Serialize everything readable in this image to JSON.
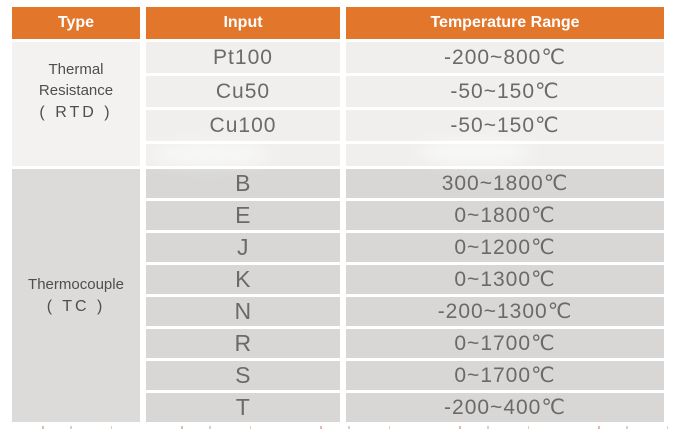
{
  "page": {
    "background": "#ffffff"
  },
  "theme": {
    "header_bg": "#e2772c",
    "header_text": "#ffffff",
    "rtd_row_bg": "#f0efee",
    "rtd_type_bg": "#f3f2f1",
    "tc_row_bg": "#d8d7d6",
    "tc_type_bg": "#dcdbda",
    "value_text": "#6b6a6a",
    "label_text": "#4f4e4e"
  },
  "table": {
    "columns": [
      "Type",
      "Input",
      "Temperature Range"
    ],
    "sections": [
      {
        "type": "Thermal Resistance",
        "type_abbr": "( RTD )",
        "rows": [
          {
            "input": "Pt100",
            "range": "-200~800℃"
          },
          {
            "input": "Cu50",
            "range": "-50~150℃"
          },
          {
            "input": "Cu100",
            "range": "-50~150℃"
          }
        ]
      },
      {
        "type": "Thermocouple",
        "type_abbr": "( TC )",
        "rows": [
          {
            "input": "B",
            "range": "300~1800℃"
          },
          {
            "input": "E",
            "range": "0~1800℃"
          },
          {
            "input": "J",
            "range": "0~1200℃"
          },
          {
            "input": "K",
            "range": "0~1300℃"
          },
          {
            "input": "N",
            "range": "-200~1300℃"
          },
          {
            "input": "R",
            "range": "0~1700℃"
          },
          {
            "input": "S",
            "range": "0~1700℃"
          },
          {
            "input": "T",
            "range": "-200~400℃"
          }
        ]
      }
    ]
  },
  "chart_data": {
    "type": "table",
    "title": "",
    "columns": [
      "Type",
      "Input",
      "Temperature Range"
    ],
    "rows": [
      [
        "Thermal Resistance ( RTD )",
        "Pt100",
        "-200~800℃"
      ],
      [
        "Thermal Resistance ( RTD )",
        "Cu50",
        "-50~150℃"
      ],
      [
        "Thermal Resistance ( RTD )",
        "Cu100",
        "-50~150℃"
      ],
      [
        "Thermocouple ( TC )",
        "B",
        "300~1800℃"
      ],
      [
        "Thermocouple ( TC )",
        "E",
        "0~1800℃"
      ],
      [
        "Thermocouple ( TC )",
        "J",
        "0~1200℃"
      ],
      [
        "Thermocouple ( TC )",
        "K",
        "0~1300℃"
      ],
      [
        "Thermocouple ( TC )",
        "N",
        "-200~1300℃"
      ],
      [
        "Thermocouple ( TC )",
        "R",
        "0~1700℃"
      ],
      [
        "Thermocouple ( TC )",
        "S",
        "0~1700℃"
      ],
      [
        "Thermocouple ( TC )",
        "T",
        "-200~400℃"
      ]
    ]
  }
}
